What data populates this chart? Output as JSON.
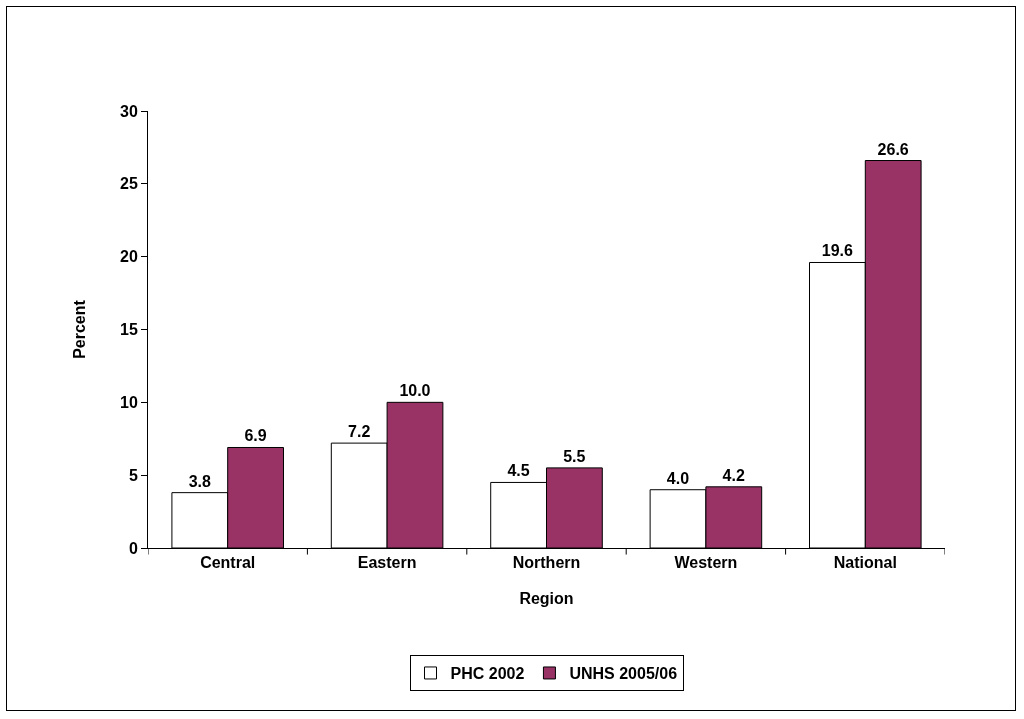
{
  "chart_data": {
    "type": "bar",
    "xlabel": "Region",
    "ylabel": "Percent",
    "categories": [
      "Central",
      "Eastern",
      "Northern",
      "Western",
      "National"
    ],
    "series": [
      {
        "name": "PHC 2002",
        "color": "#ffffff",
        "values": [
          3.8,
          7.2,
          4.5,
          4.0,
          19.6
        ],
        "value_labels": [
          "3.8",
          "7.2",
          "4.5",
          "4.0",
          "19.6"
        ]
      },
      {
        "name": "UNHS 2005/06",
        "color": "#993366",
        "values": [
          6.9,
          10.0,
          5.5,
          4.2,
          26.6
        ],
        "value_labels": [
          "6.9",
          "10.0",
          "5.5",
          "4.2",
          "26.6"
        ]
      }
    ],
    "ylim": [
      0,
      30
    ],
    "yticks": [
      0,
      5,
      10,
      15,
      20,
      25,
      30
    ],
    "grid": false,
    "legend": "bottom"
  }
}
